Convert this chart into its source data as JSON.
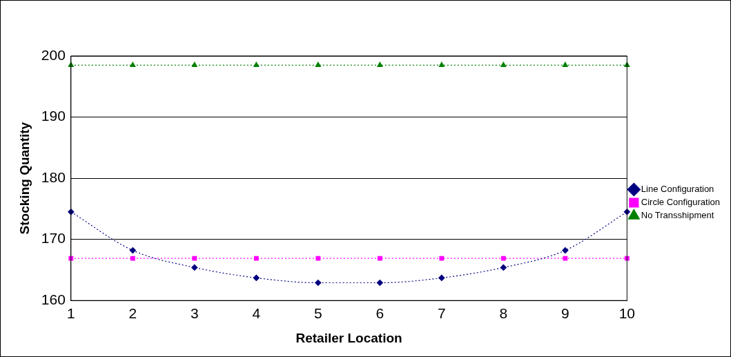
{
  "chart_data": {
    "type": "line",
    "xlabel": "Retailer Location",
    "ylabel": "Stocking Quantity",
    "x": [
      1,
      2,
      3,
      4,
      5,
      6,
      7,
      8,
      9,
      10
    ],
    "series": [
      {
        "name": "Line Configuration",
        "color": "#000080",
        "marker": "diamond",
        "values": [
          174.5,
          168.2,
          165.4,
          163.7,
          162.9,
          162.9,
          163.7,
          165.4,
          168.2,
          174.5
        ]
      },
      {
        "name": "Circle Configuration",
        "color": "#ff00ff",
        "marker": "square",
        "values": [
          166.9,
          166.9,
          166.9,
          166.9,
          166.9,
          166.9,
          166.9,
          166.9,
          166.9,
          166.9
        ]
      },
      {
        "name": "No Transshipment",
        "color": "#008000",
        "marker": "triangle",
        "values": [
          198.5,
          198.5,
          198.5,
          198.5,
          198.5,
          198.5,
          198.5,
          198.5,
          198.5,
          198.5
        ]
      }
    ],
    "xlim": [
      1,
      10
    ],
    "xticks": [
      1,
      2,
      3,
      4,
      5,
      6,
      7,
      8,
      9,
      10
    ],
    "ylim": [
      160,
      200
    ],
    "yticks": [
      160,
      170,
      180,
      190,
      200
    ],
    "grid": "y",
    "legend": "right",
    "line_style": "dotted"
  }
}
